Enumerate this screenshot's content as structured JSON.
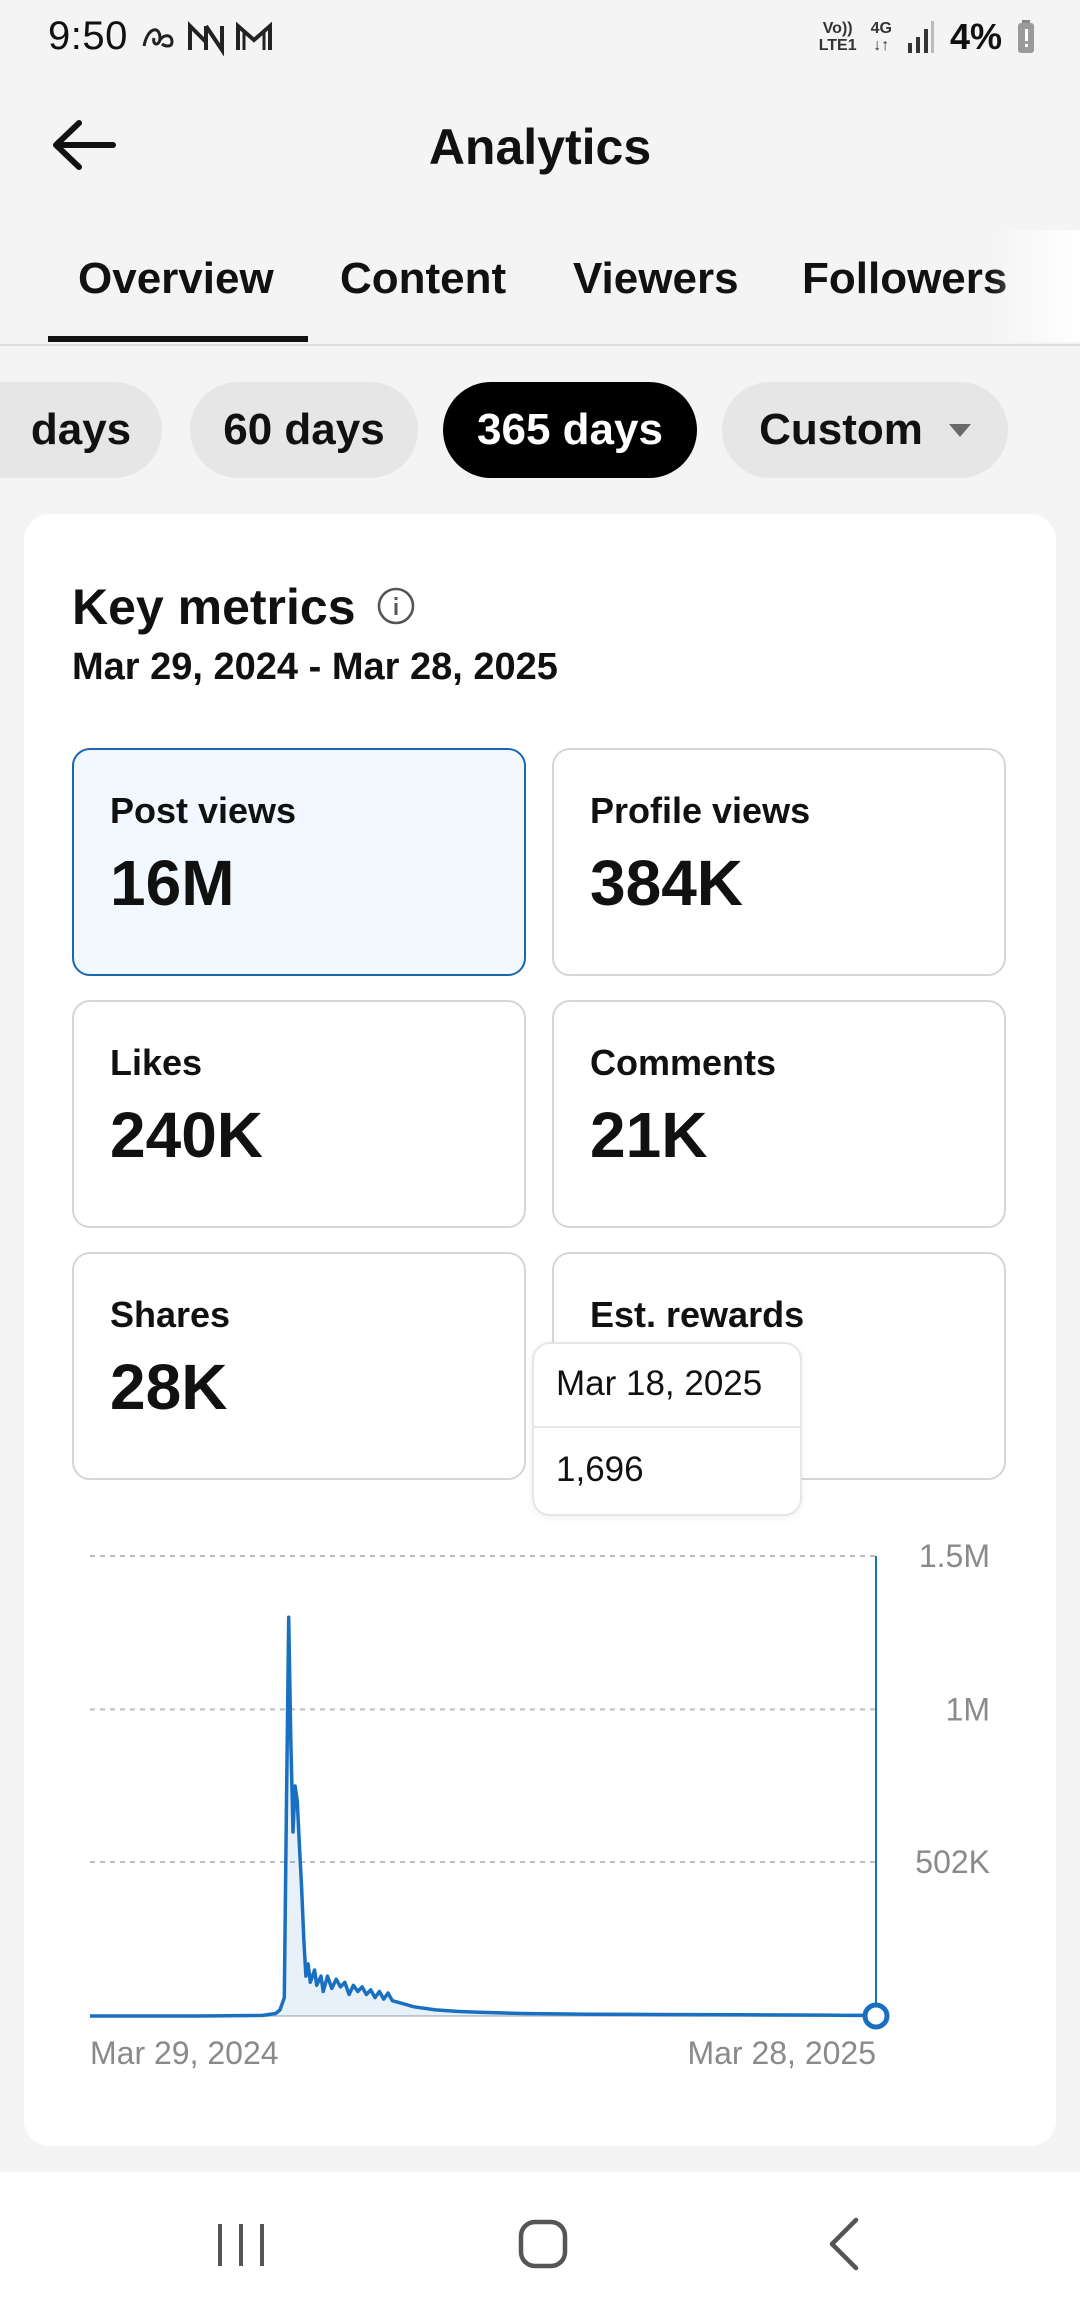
{
  "status_bar": {
    "time": "9:50",
    "left_icons": [
      "assistant-icon",
      "vpn-n-icon",
      "gmail-icon"
    ],
    "network": {
      "volte": "Vo))",
      "lte": "LTE1",
      "gen": "4G"
    },
    "battery": "4%"
  },
  "header": {
    "title": "Analytics",
    "back_icon": "arrow-left-icon"
  },
  "tabs": [
    {
      "label": "Overview",
      "active": true
    },
    {
      "label": "Content",
      "active": false
    },
    {
      "label": "Viewers",
      "active": false
    },
    {
      "label": "Followers",
      "active": false
    }
  ],
  "ranges": [
    {
      "label": "days",
      "active": false
    },
    {
      "label": "60 days",
      "active": false
    },
    {
      "label": "365 days",
      "active": true
    },
    {
      "label": "Custom",
      "active": false,
      "dropdown": true
    }
  ],
  "key_metrics": {
    "title": "Key metrics",
    "date_range": "Mar 29, 2024 - Mar 28, 2025",
    "metrics": [
      {
        "label": "Post views",
        "value": "16M",
        "selected": true
      },
      {
        "label": "Profile views",
        "value": "384K",
        "selected": false
      },
      {
        "label": "Likes",
        "value": "240K",
        "selected": false
      },
      {
        "label": "Comments",
        "value": "21K",
        "selected": false
      },
      {
        "label": "Shares",
        "value": "28K",
        "selected": false
      },
      {
        "label": "Est. rewards",
        "value": "-",
        "selected": false
      }
    ]
  },
  "chart_data": {
    "type": "line",
    "series": [
      {
        "color": "#1a70c0",
        "points": [
          [
            0,
            0
          ],
          [
            50,
            0
          ],
          [
            80,
            2000
          ],
          [
            86,
            8000
          ],
          [
            88,
            20000
          ],
          [
            90,
            60000
          ],
          [
            91,
            700000
          ],
          [
            92,
            1300000
          ],
          [
            93,
            900000
          ],
          [
            94,
            600000
          ],
          [
            95,
            750000
          ],
          [
            96,
            700000
          ],
          [
            97,
            550000
          ],
          [
            98,
            420000
          ],
          [
            99,
            250000
          ],
          [
            100,
            130000
          ],
          [
            101,
            170000
          ],
          [
            102,
            110000
          ],
          [
            104,
            150000
          ],
          [
            105,
            100000
          ],
          [
            107,
            130000
          ],
          [
            108,
            80000
          ],
          [
            110,
            130000
          ],
          [
            112,
            90000
          ],
          [
            114,
            120000
          ],
          [
            116,
            95000
          ],
          [
            118,
            110000
          ],
          [
            120,
            70000
          ],
          [
            122,
            100000
          ],
          [
            124,
            80000
          ],
          [
            126,
            95000
          ],
          [
            128,
            70000
          ],
          [
            130,
            85000
          ],
          [
            132,
            60000
          ],
          [
            134,
            80000
          ],
          [
            136,
            55000
          ],
          [
            138,
            75000
          ],
          [
            140,
            50000
          ],
          [
            145,
            40000
          ],
          [
            150,
            30000
          ],
          [
            160,
            20000
          ],
          [
            170,
            15000
          ],
          [
            180,
            12000
          ],
          [
            200,
            8000
          ],
          [
            230,
            6000
          ],
          [
            260,
            5000
          ],
          [
            300,
            4000
          ],
          [
            340,
            3000
          ],
          [
            350,
            2000
          ],
          [
            360,
            2500
          ],
          [
            364,
            1696
          ]
        ]
      }
    ],
    "y_ticks": [
      "1.5M",
      "1M",
      "502K"
    ],
    "x_labels": [
      "Mar 29, 2024",
      "Mar 28, 2025"
    ],
    "ylim": [
      0,
      1500000
    ],
    "xlim": [
      0,
      364
    ],
    "grid": true,
    "highlight": {
      "x_index": 364,
      "date": "Mar 18, 2025",
      "value": "1,696"
    }
  },
  "tooltip": {
    "date": "Mar 18, 2025",
    "value": "1,696"
  },
  "nav_bar": {
    "icons": [
      "recent-apps-icon",
      "home-icon",
      "back-icon"
    ]
  }
}
